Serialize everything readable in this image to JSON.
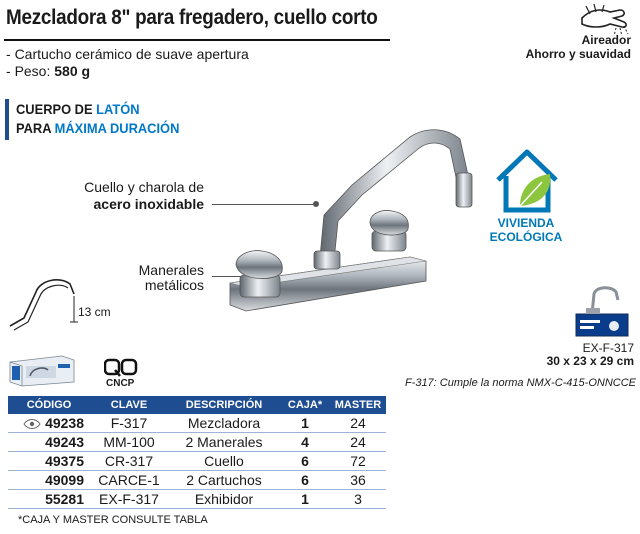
{
  "title": "Mezcladora 8\" para fregadero, cuello corto",
  "features": [
    {
      "prefix": "- ",
      "text": "Cartucho cerámico de suave apertura",
      "value": ""
    },
    {
      "prefix": "- ",
      "text": "Peso: ",
      "value": "580 g"
    }
  ],
  "aireador": {
    "title": "Aireador",
    "subtitle": "Ahorro y suavidad"
  },
  "cuerpo": {
    "line1_a": "CUERPO DE ",
    "line1_b": "LATÓN",
    "line2_a": "PARA ",
    "line2_b": "MÁXIMA DURACIÓN"
  },
  "callouts": {
    "cuello_line1": "Cuello y charola de",
    "cuello_line2": "acero inoxidable",
    "manerales_line1": "Manerales",
    "manerales_line2": "metálicos"
  },
  "vivienda": {
    "line1": "VIVIENDA",
    "line2": "ECOLÓGICA"
  },
  "dimension_13": "13 cm",
  "cncp": "CNCP",
  "exhibidor": {
    "code": "EX-F-317",
    "dims": "30 x 23 x 29 cm"
  },
  "norma": "F-317: Cumple la norma NMX-C-415-ONNCCE",
  "colors": {
    "brand_blue": "#1f4d92",
    "accent_blue": "#0078c8",
    "eco_green": "#8cc63f"
  },
  "table": {
    "headers": [
      "CÓDIGO",
      "CLAVE",
      "DESCRIPCIÓN",
      "CAJA*",
      "MASTER"
    ],
    "rows": [
      [
        "49238",
        "F-317",
        "Mezcladora",
        "1",
        "24"
      ],
      [
        "49243",
        "MM-100",
        "2 Manerales",
        "4",
        "24"
      ],
      [
        "49375",
        "CR-317",
        "Cuello",
        "6",
        "72"
      ],
      [
        "49099",
        "CARCE-1",
        "2 Cartuchos",
        "6",
        "36"
      ],
      [
        "55281",
        "EX-F-317",
        "Exhibidor",
        "1",
        "3"
      ]
    ]
  },
  "footnote": "*CAJA Y MASTER CONSULTE TABLA"
}
